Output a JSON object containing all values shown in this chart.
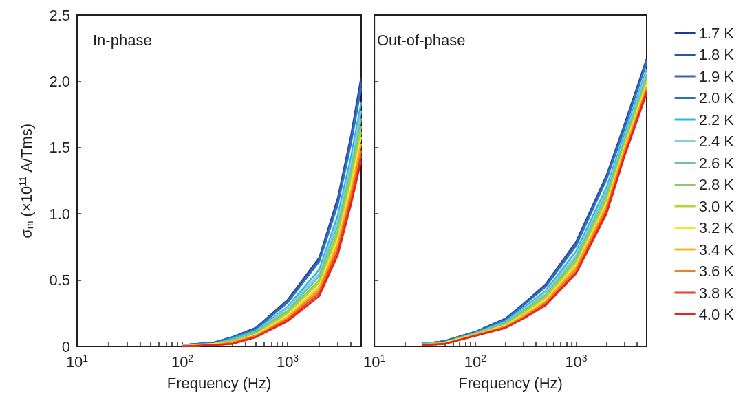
{
  "chart_data": [
    {
      "type": "line",
      "title": "In-phase",
      "xlabel": "Frequency (Hz)",
      "ylabel": "σ$_{m}$ (×10$^{11}$ A/Tms)",
      "log": "x",
      "marker": "none",
      "line_style": "solid",
      "xlim": [
        10,
        5000
      ],
      "xticks": [
        {
          "value": 10,
          "label": "10$^{1}$"
        },
        {
          "value": 20,
          "label": null
        },
        {
          "value": 30,
          "label": null
        },
        {
          "value": 40,
          "label": null
        },
        {
          "value": 50,
          "label": null
        },
        {
          "value": 60,
          "label": null
        },
        {
          "value": 70,
          "label": null
        },
        {
          "value": 80,
          "label": null
        },
        {
          "value": 90,
          "label": null
        },
        {
          "value": 100,
          "label": "10$^{2}$"
        },
        {
          "value": 200,
          "label": null
        },
        {
          "value": 300,
          "label": null
        },
        {
          "value": 400,
          "label": null
        },
        {
          "value": 500,
          "label": null
        },
        {
          "value": 600,
          "label": null
        },
        {
          "value": 700,
          "label": null
        },
        {
          "value": 800,
          "label": null
        },
        {
          "value": 900,
          "label": null
        },
        {
          "value": 1000,
          "label": "10$^{3}$"
        },
        {
          "value": 2000,
          "label": null
        },
        {
          "value": 3000,
          "label": null
        },
        {
          "value": 4000,
          "label": null
        }
      ],
      "ylim": [
        0,
        2.5
      ],
      "yticks": [
        0,
        0.5,
        {
          "value": 1,
          "label": "1.0"
        },
        1.5,
        {
          "value": 2,
          "label": "2.0"
        },
        2.5
      ],
      "x": [
        100,
        200,
        300,
        500,
        1000,
        2000,
        3000,
        4000,
        5000
      ],
      "series": [
        {
          "color": "#1a3a9a",
          "values": [
            0.01,
            0.03,
            0.07,
            0.14,
            0.35,
            0.67,
            1.12,
            1.59,
            2.03
          ]
        },
        {
          "color": "#2a56b0",
          "values": [
            0.01,
            0.03,
            0.07,
            0.14,
            0.34,
            0.66,
            1.1,
            1.57,
            2.0
          ]
        },
        {
          "color": "#3a62b0",
          "values": [
            0.01,
            0.03,
            0.07,
            0.13,
            0.34,
            0.65,
            1.09,
            1.55,
            1.98
          ]
        },
        {
          "color": "#2f6fc0",
          "values": [
            0.01,
            0.03,
            0.06,
            0.13,
            0.33,
            0.64,
            1.07,
            1.53,
            1.95
          ]
        },
        {
          "color": "#29b6e8",
          "values": [
            0.01,
            0.02,
            0.06,
            0.12,
            0.3,
            0.58,
            0.99,
            1.43,
            1.84
          ]
        },
        {
          "color": "#7dcfe0",
          "values": [
            0.01,
            0.02,
            0.05,
            0.11,
            0.29,
            0.55,
            0.95,
            1.38,
            1.78
          ]
        },
        {
          "color": "#6cc4a4",
          "values": [
            0.0,
            0.02,
            0.05,
            0.11,
            0.27,
            0.53,
            0.91,
            1.33,
            1.72
          ]
        },
        {
          "color": "#8cc870",
          "values": [
            0.0,
            0.02,
            0.04,
            0.1,
            0.26,
            0.5,
            0.87,
            1.29,
            1.66
          ]
        },
        {
          "color": "#b5d334",
          "values": [
            0.0,
            0.02,
            0.04,
            0.09,
            0.25,
            0.48,
            0.84,
            1.25,
            1.62
          ]
        },
        {
          "color": "#f0e62a",
          "values": [
            0.0,
            0.02,
            0.03,
            0.09,
            0.23,
            0.46,
            0.81,
            1.22,
            1.58
          ]
        },
        {
          "color": "#f6b424",
          "values": [
            0.0,
            0.01,
            0.03,
            0.08,
            0.22,
            0.44,
            0.78,
            1.17,
            1.53
          ]
        },
        {
          "color": "#f08028",
          "values": [
            0.0,
            0.01,
            0.03,
            0.08,
            0.21,
            0.42,
            0.75,
            1.14,
            1.48
          ]
        },
        {
          "color": "#ee4020",
          "values": [
            0.0,
            0.01,
            0.02,
            0.07,
            0.2,
            0.4,
            0.72,
            1.1,
            1.44
          ]
        },
        {
          "color": "#e8221c",
          "values": [
            0.0,
            0.01,
            0.02,
            0.07,
            0.19,
            0.38,
            0.69,
            1.07,
            1.4
          ]
        }
      ]
    },
    {
      "type": "line",
      "title": "Out-of-phase",
      "xlabel": "Frequency (Hz)",
      "log": "x",
      "marker": "none",
      "line_style": "solid",
      "legend": "right",
      "tick_labels": "x",
      "xlim": [
        10,
        5000
      ],
      "xticks": [
        {
          "value": 10,
          "label": "10$^{1}$"
        },
        {
          "value": 20,
          "label": null
        },
        {
          "value": 30,
          "label": null
        },
        {
          "value": 40,
          "label": null
        },
        {
          "value": 50,
          "label": null
        },
        {
          "value": 60,
          "label": null
        },
        {
          "value": 70,
          "label": null
        },
        {
          "value": 80,
          "label": null
        },
        {
          "value": 90,
          "label": null
        },
        {
          "value": 100,
          "label": "10$^{2}$"
        },
        {
          "value": 200,
          "label": null
        },
        {
          "value": 300,
          "label": null
        },
        {
          "value": 400,
          "label": null
        },
        {
          "value": 500,
          "label": null
        },
        {
          "value": 600,
          "label": null
        },
        {
          "value": 700,
          "label": null
        },
        {
          "value": 800,
          "label": null
        },
        {
          "value": 900,
          "label": null
        },
        {
          "value": 1000,
          "label": "10$^{3}$"
        },
        {
          "value": 2000,
          "label": null
        },
        {
          "value": 3000,
          "label": null
        },
        {
          "value": 4000,
          "label": null
        }
      ],
      "ylim": [
        0,
        2.5
      ],
      "yticks": [
        0,
        0.5,
        1,
        1.5,
        2,
        2.5
      ],
      "x": [
        30,
        50,
        100,
        200,
        300,
        500,
        1000,
        2000,
        3000,
        5000
      ],
      "series": [
        {
          "name": "1.7 K",
          "color": "#1a3a9a",
          "values": [
            0.02,
            0.04,
            0.11,
            0.21,
            0.32,
            0.47,
            0.79,
            1.29,
            1.67,
            2.17
          ]
        },
        {
          "name": "1.8 K",
          "color": "#2a56b0",
          "values": [
            0.02,
            0.04,
            0.11,
            0.21,
            0.32,
            0.46,
            0.78,
            1.28,
            1.66,
            2.16
          ]
        },
        {
          "name": "1.9 K",
          "color": "#3a62b0",
          "values": [
            0.02,
            0.04,
            0.11,
            0.2,
            0.31,
            0.46,
            0.77,
            1.27,
            1.65,
            2.15
          ]
        },
        {
          "name": "2.0 K",
          "color": "#2f6fc0",
          "values": [
            0.02,
            0.04,
            0.11,
            0.2,
            0.31,
            0.45,
            0.76,
            1.26,
            1.64,
            2.14
          ]
        },
        {
          "name": "2.2 K",
          "color": "#29b6e8",
          "values": [
            0.02,
            0.03,
            0.1,
            0.19,
            0.29,
            0.42,
            0.72,
            1.2,
            1.6,
            2.09
          ]
        },
        {
          "name": "2.4 K",
          "color": "#7dcfe0",
          "values": [
            0.02,
            0.03,
            0.1,
            0.18,
            0.28,
            0.41,
            0.69,
            1.17,
            1.57,
            2.07
          ]
        },
        {
          "name": "2.6 K",
          "color": "#6cc4a4",
          "values": [
            0.02,
            0.03,
            0.1,
            0.18,
            0.27,
            0.39,
            0.67,
            1.15,
            1.55,
            2.04
          ]
        },
        {
          "name": "2.8 K",
          "color": "#8cc870",
          "values": [
            0.01,
            0.03,
            0.09,
            0.17,
            0.26,
            0.38,
            0.65,
            1.12,
            1.53,
            2.02
          ]
        },
        {
          "name": "3.0 K",
          "color": "#b5d334",
          "values": [
            0.01,
            0.03,
            0.09,
            0.16,
            0.25,
            0.37,
            0.63,
            1.1,
            1.51,
            2.0
          ]
        },
        {
          "name": "3.2 K",
          "color": "#f0e62a",
          "values": [
            null,
            0.03,
            0.09,
            0.16,
            0.24,
            0.35,
            0.62,
            1.08,
            1.5,
            1.98
          ]
        },
        {
          "name": "3.4 K",
          "color": "#f6b424",
          "values": [
            0.01,
            0.02,
            0.09,
            0.15,
            0.23,
            0.34,
            0.6,
            1.06,
            1.48,
            1.96
          ]
        },
        {
          "name": "3.6 K",
          "color": "#f08028",
          "values": [
            0.01,
            0.02,
            0.08,
            0.15,
            0.22,
            0.33,
            0.58,
            1.04,
            1.46,
            1.94
          ]
        },
        {
          "name": "3.8 K",
          "color": "#ee4020",
          "values": [
            0.01,
            0.02,
            0.08,
            0.14,
            0.21,
            0.32,
            0.56,
            1.02,
            1.44,
            1.93
          ]
        },
        {
          "name": "4.0 K",
          "color": "#e8221c",
          "values": [
            0.01,
            0.02,
            0.08,
            0.14,
            0.21,
            0.31,
            0.55,
            1.0,
            1.43,
            1.91
          ]
        }
      ]
    }
  ]
}
